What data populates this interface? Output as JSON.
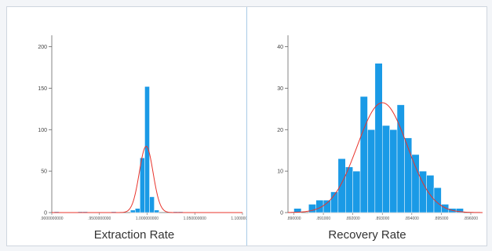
{
  "colors": {
    "bar": "#1a9ae6",
    "bar_edge": "#ffffff",
    "curve": "#e8342c",
    "axis": "#666666"
  },
  "chart_data": [
    {
      "type": "bar",
      "title": "Extraction Rate",
      "xlabel": "Extraction Rate",
      "ylabel": "",
      "xlim": [
        0.9,
        1.1
      ],
      "ylim": [
        0,
        210
      ],
      "yticks": [
        "0",
        "50",
        "100",
        "150",
        "200"
      ],
      "xticks": [
        ".9000000000",
        ".9500000000",
        "1.000000000",
        "1.050000000",
        "1.100000000"
      ],
      "bin_width": 0.005,
      "bins": [
        {
          "x": 0.905,
          "v": 1
        },
        {
          "x": 0.93,
          "v": 1
        },
        {
          "x": 0.935,
          "v": 1
        },
        {
          "x": 0.965,
          "v": 1
        },
        {
          "x": 0.985,
          "v": 3
        },
        {
          "x": 0.99,
          "v": 5
        },
        {
          "x": 0.995,
          "v": 66
        },
        {
          "x": 1.0,
          "v": 152
        },
        {
          "x": 1.005,
          "v": 19
        },
        {
          "x": 1.01,
          "v": 3
        },
        {
          "x": 1.03,
          "v": 1
        },
        {
          "x": 1.035,
          "v": 1
        }
      ],
      "curve": {
        "mean": 0.999,
        "peak": 80,
        "sd": 0.0072
      }
    },
    {
      "type": "bar",
      "title": "Recovery Rate",
      "xlabel": "Recovery Rate",
      "ylabel": "",
      "xlim": [
        0.8898,
        0.8964
      ],
      "ylim": [
        0,
        42
      ],
      "yticks": [
        "0",
        "10",
        "20",
        "30",
        "40"
      ],
      "xticks": [
        ".890000",
        ".891000",
        ".892000",
        ".893000",
        ".894000",
        ".895000",
        ".896000"
      ],
      "bin_width": 0.00025,
      "bins": [
        {
          "x": 0.890125,
          "v": 1
        },
        {
          "x": 0.890375,
          "v": 0
        },
        {
          "x": 0.890625,
          "v": 2
        },
        {
          "x": 0.890875,
          "v": 3
        },
        {
          "x": 0.891125,
          "v": 3
        },
        {
          "x": 0.891375,
          "v": 5
        },
        {
          "x": 0.891625,
          "v": 13
        },
        {
          "x": 0.891875,
          "v": 11
        },
        {
          "x": 0.892125,
          "v": 10
        },
        {
          "x": 0.892375,
          "v": 28
        },
        {
          "x": 0.892625,
          "v": 20
        },
        {
          "x": 0.892875,
          "v": 36
        },
        {
          "x": 0.893125,
          "v": 21
        },
        {
          "x": 0.893375,
          "v": 20
        },
        {
          "x": 0.893625,
          "v": 26
        },
        {
          "x": 0.893875,
          "v": 18
        },
        {
          "x": 0.894125,
          "v": 14
        },
        {
          "x": 0.894375,
          "v": 10
        },
        {
          "x": 0.894625,
          "v": 9
        },
        {
          "x": 0.894875,
          "v": 6
        },
        {
          "x": 0.895125,
          "v": 2
        },
        {
          "x": 0.895375,
          "v": 1
        },
        {
          "x": 0.895625,
          "v": 1
        }
      ],
      "curve": {
        "mean": 0.893,
        "peak": 26.5,
        "sd": 0.00085
      }
    }
  ]
}
